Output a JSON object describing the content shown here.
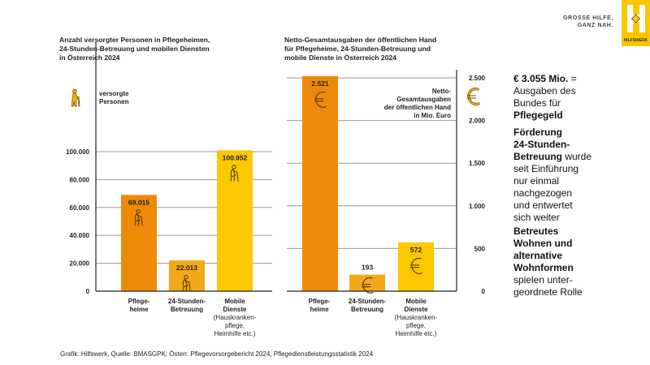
{
  "brand": {
    "slogan": "GROSSE HILFE,\nGANZ NAH.",
    "logo_letter": "H",
    "logo_name": "HILFSWERK",
    "color": "#fcc500"
  },
  "colors": {
    "pflegeheime": "#ee8a0a",
    "stunden24": "#f2a818",
    "mobile": "#fcc800",
    "icon_stroke": "#6b4a00",
    "gridline": "#999999",
    "axis": "#222222"
  },
  "left": {
    "title": "Anzahl versorgter Personen in Pflegeheimen,\n24-Stunden-Betreuung und mobilen Diensten\nin Österreich 2024",
    "unit_label": "versorgte\nPersonen",
    "unit_icon": "elderly-person-icon"
  },
  "right": {
    "title": "Netto-Gesamtausgaben der öffentlichen Hand\nfür Pflegeheime, 24-Stunden-Betreuung und\nmobile Dienste in Österreich 2024",
    "unit_label": "Netto-\nGesamtausgaben\nder öffentlichen Hand\nin Mio. Euro",
    "unit_icon": "euro-icon"
  },
  "categories": [
    {
      "main": "Pflege-\nheime",
      "sub": ""
    },
    {
      "main": "24-Stunden-\nBetreuung",
      "sub": ""
    },
    {
      "main": "Mobile\nDienste",
      "sub": "(Hauskranken-\npflege,\nHeimhilfe etc.)"
    }
  ],
  "side": {
    "p1_bold": "€ 3.055 Mio.",
    "p1_rest": " =\nAusgaben des\nBundes für\n",
    "p1_bold2": "Pflegegeld",
    "p2_bold": "Förderung\n24-Stunden-\nBetreuung",
    "p2_rest": " wurde\nseit Einführung\nnur einmal\nnachgezogen\nund entwertet\nsich weiter",
    "p3_bold": "Betreutes\nWohnen und\nalternative\nWohnformen",
    "p3_rest": "\nspielen unter-\ngeordnete Rolle"
  },
  "footer": "Grafik: Hilfswerk, Quelle: BMASGPK, Österr. Pflegevorsorgebericht 2024, Pflegedienstleistungsstatistik 2024",
  "chart_data": [
    {
      "type": "bar",
      "title": "Anzahl versorgter Personen in Pflegeheimen, 24-Stunden-Betreuung und mobilen Diensten in Österreich 2024",
      "ylabel": "versorgte Personen",
      "categories": [
        "Pflegeheime",
        "24-Stunden-Betreuung",
        "Mobile Dienste (Hauskrankenpflege, Heimhilfe etc.)"
      ],
      "values": [
        69015,
        22013,
        100952
      ],
      "value_labels": [
        "69.015",
        "22.013",
        "100.952"
      ],
      "ylim": [
        0,
        100000
      ],
      "yticks": [
        0,
        20000,
        40000,
        60000,
        80000,
        100000
      ],
      "ytick_labels": [
        "0",
        "20.000",
        "40.000",
        "60.000",
        "80.000",
        "100.000"
      ],
      "y_axis_side": "left",
      "grid": true
    },
    {
      "type": "bar",
      "title": "Netto-Gesamtausgaben der öffentlichen Hand für Pflegeheime, 24-Stunden-Betreuung und mobile Dienste in Österreich 2024",
      "ylabel": "Netto-Gesamtausgaben der öffentlichen Hand in Mio. Euro",
      "categories": [
        "Pflegeheime",
        "24-Stunden-Betreuung",
        "Mobile Dienste (Hauskrankenpflege, Heimhilfe etc.)"
      ],
      "values": [
        2521,
        193,
        572
      ],
      "value_labels": [
        "2.521",
        "193",
        "572"
      ],
      "ylim": [
        0,
        2500
      ],
      "yticks": [
        0,
        500,
        1000,
        1500,
        2000,
        2500
      ],
      "ytick_labels": [
        "0",
        "500",
        "1.000",
        "1.500",
        "2.000",
        "2.500"
      ],
      "y_axis_side": "right",
      "grid": true
    }
  ]
}
